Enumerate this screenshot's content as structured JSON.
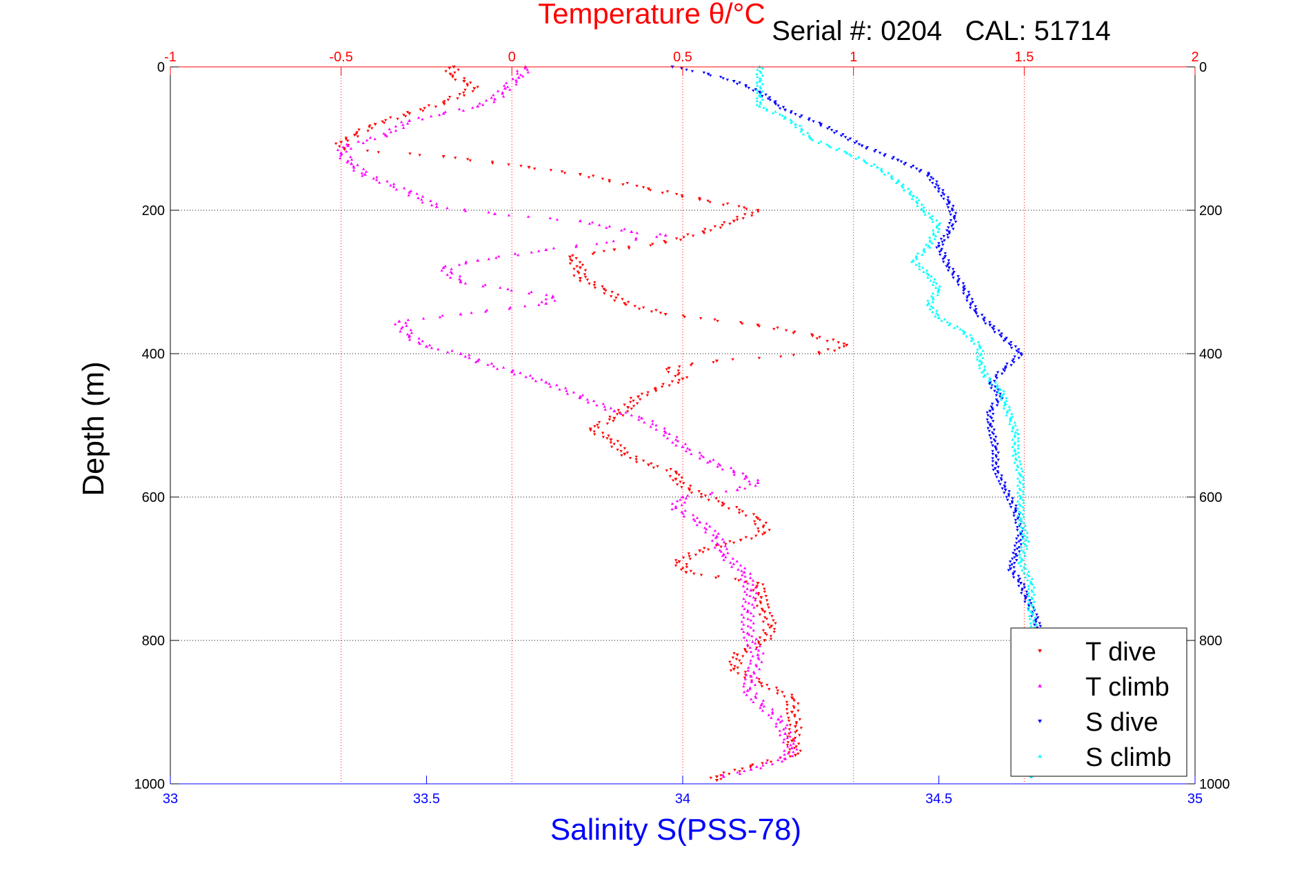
{
  "chart_data": {
    "type": "scatter",
    "title": "Temperature θ/°C",
    "subtitle": "Serial #: 0204   CAL: 51714",
    "xlabel": "Salinity S(PSS-78)",
    "ylabel": "Depth (m)",
    "temperature_axis": {
      "range": [
        -1,
        2
      ],
      "ticks": [
        -1,
        -0.5,
        0,
        0.5,
        1,
        1.5,
        2
      ],
      "color": "#ff0000"
    },
    "salinity_axis": {
      "range": [
        33,
        35
      ],
      "ticks": [
        33,
        33.5,
        34,
        34.5,
        35
      ],
      "color": "#0000ff"
    },
    "depth_axis": {
      "range": [
        0,
        1000
      ],
      "reversed": true,
      "ticks": [
        0,
        200,
        400,
        600,
        800,
        1000
      ]
    },
    "grid": true,
    "legend_position": "bottom-right",
    "series": [
      {
        "name": "T dive",
        "axis": "temperature",
        "color": "#ff0000",
        "marker": "triangle-down",
        "points": [
          [
            -0.17,
            0
          ],
          [
            -0.18,
            10
          ],
          [
            -0.14,
            20
          ],
          [
            -0.11,
            30
          ],
          [
            -0.2,
            50
          ],
          [
            -0.3,
            65
          ],
          [
            -0.4,
            80
          ],
          [
            -0.46,
            95
          ],
          [
            -0.5,
            105
          ],
          [
            -0.49,
            115
          ],
          [
            -0.2,
            125
          ],
          [
            0.05,
            140
          ],
          [
            0.2,
            150
          ],
          [
            0.4,
            170
          ],
          [
            0.55,
            185
          ],
          [
            0.72,
            200
          ],
          [
            0.65,
            215
          ],
          [
            0.56,
            230
          ],
          [
            0.45,
            245
          ],
          [
            0.3,
            255
          ],
          [
            0.17,
            265
          ],
          [
            0.2,
            280
          ],
          [
            0.2,
            295
          ],
          [
            0.27,
            310
          ],
          [
            0.33,
            330
          ],
          [
            0.45,
            345
          ],
          [
            0.72,
            360
          ],
          [
            0.88,
            375
          ],
          [
            0.98,
            388
          ],
          [
            0.9,
            400
          ],
          [
            0.6,
            410
          ],
          [
            0.46,
            420
          ],
          [
            0.5,
            435
          ],
          [
            0.42,
            450
          ],
          [
            0.37,
            460
          ],
          [
            0.34,
            475
          ],
          [
            0.3,
            490
          ],
          [
            0.23,
            505
          ],
          [
            0.29,
            520
          ],
          [
            0.33,
            540
          ],
          [
            0.4,
            555
          ],
          [
            0.48,
            565
          ],
          [
            0.48,
            575
          ],
          [
            0.52,
            590
          ],
          [
            0.62,
            610
          ],
          [
            0.72,
            630
          ],
          [
            0.74,
            650
          ],
          [
            0.67,
            660
          ],
          [
            0.55,
            675
          ],
          [
            0.49,
            690
          ],
          [
            0.51,
            705
          ],
          [
            0.72,
            720
          ],
          [
            0.73,
            740
          ],
          [
            0.74,
            760
          ],
          [
            0.76,
            780
          ],
          [
            0.74,
            800
          ],
          [
            0.66,
            820
          ],
          [
            0.65,
            840
          ],
          [
            0.73,
            860
          ],
          [
            0.82,
            880
          ],
          [
            0.82,
            900
          ],
          [
            0.83,
            920
          ],
          [
            0.82,
            940
          ],
          [
            0.83,
            960
          ],
          [
            0.7,
            975
          ],
          [
            0.6,
            990
          ],
          [
            0.6,
            995
          ]
        ]
      },
      {
        "name": "T climb",
        "axis": "temperature",
        "color": "#ff00ff",
        "marker": "triangle-up",
        "points": [
          [
            0.04,
            0
          ],
          [
            0.02,
            15
          ],
          [
            -0.02,
            30
          ],
          [
            -0.05,
            45
          ],
          [
            -0.1,
            55
          ],
          [
            -0.2,
            65
          ],
          [
            -0.3,
            75
          ],
          [
            -0.37,
            95
          ],
          [
            -0.48,
            110
          ],
          [
            -0.5,
            120
          ],
          [
            -0.47,
            135
          ],
          [
            -0.43,
            150
          ],
          [
            -0.3,
            175
          ],
          [
            -0.22,
            195
          ],
          [
            -0.05,
            205
          ],
          [
            0.2,
            215
          ],
          [
            0.35,
            230
          ],
          [
            0.45,
            235
          ],
          [
            0.1,
            255
          ],
          [
            -0.1,
            270
          ],
          [
            -0.2,
            280
          ],
          [
            -0.15,
            300
          ],
          [
            0.12,
            320
          ],
          [
            0.1,
            330
          ],
          [
            -0.15,
            345
          ],
          [
            -0.33,
            355
          ],
          [
            -0.3,
            375
          ],
          [
            -0.25,
            390
          ],
          [
            -0.15,
            400
          ],
          [
            -0.1,
            410
          ],
          [
            0.0,
            425
          ],
          [
            0.1,
            440
          ],
          [
            0.2,
            460
          ],
          [
            0.3,
            480
          ],
          [
            0.38,
            490
          ],
          [
            0.45,
            510
          ],
          [
            0.5,
            530
          ],
          [
            0.58,
            550
          ],
          [
            0.65,
            565
          ],
          [
            0.72,
            580
          ],
          [
            0.66,
            590
          ],
          [
            0.5,
            600
          ],
          [
            0.48,
            615
          ],
          [
            0.55,
            635
          ],
          [
            0.6,
            655
          ],
          [
            0.62,
            680
          ],
          [
            0.68,
            705
          ],
          [
            0.7,
            730
          ],
          [
            0.69,
            760
          ],
          [
            0.69,
            790
          ],
          [
            0.72,
            820
          ],
          [
            0.7,
            850
          ],
          [
            0.69,
            870
          ],
          [
            0.73,
            890
          ],
          [
            0.78,
            910
          ],
          [
            0.8,
            930
          ],
          [
            0.82,
            950
          ],
          [
            0.8,
            965
          ],
          [
            0.7,
            980
          ],
          [
            0.62,
            990
          ]
        ]
      },
      {
        "name": "S dive",
        "axis": "salinity",
        "color": "#0000ff",
        "marker": "triangle-down",
        "points": [
          [
            33.98,
            0
          ],
          [
            34.05,
            10
          ],
          [
            34.1,
            20
          ],
          [
            34.15,
            35
          ],
          [
            34.18,
            50
          ],
          [
            34.2,
            60
          ],
          [
            34.27,
            80
          ],
          [
            34.35,
            110
          ],
          [
            34.42,
            130
          ],
          [
            34.48,
            150
          ],
          [
            34.5,
            170
          ],
          [
            34.52,
            190
          ],
          [
            34.53,
            210
          ],
          [
            34.52,
            230
          ],
          [
            34.5,
            250
          ],
          [
            34.52,
            280
          ],
          [
            34.55,
            310
          ],
          [
            34.57,
            340
          ],
          [
            34.6,
            360
          ],
          [
            34.63,
            380
          ],
          [
            34.66,
            400
          ],
          [
            34.63,
            420
          ],
          [
            34.6,
            440
          ],
          [
            34.62,
            460
          ],
          [
            34.6,
            480
          ],
          [
            34.6,
            500
          ],
          [
            34.61,
            530
          ],
          [
            34.61,
            560
          ],
          [
            34.63,
            590
          ],
          [
            34.65,
            620
          ],
          [
            34.66,
            650
          ],
          [
            34.65,
            680
          ],
          [
            34.64,
            700
          ],
          [
            34.66,
            720
          ],
          [
            34.67,
            740
          ],
          [
            34.69,
            770
          ],
          [
            34.7,
            800
          ],
          [
            34.7,
            830
          ],
          [
            34.69,
            860
          ],
          [
            34.69,
            900
          ],
          [
            34.68,
            940
          ],
          [
            34.68,
            970
          ],
          [
            34.68,
            990
          ]
        ]
      },
      {
        "name": "S climb",
        "axis": "salinity",
        "color": "#00ffff",
        "marker": "triangle-up",
        "points": [
          [
            34.15,
            0
          ],
          [
            34.15,
            20
          ],
          [
            34.15,
            40
          ],
          [
            34.15,
            55
          ],
          [
            34.2,
            70
          ],
          [
            34.22,
            80
          ],
          [
            34.25,
            100
          ],
          [
            34.32,
            120
          ],
          [
            34.38,
            140
          ],
          [
            34.42,
            160
          ],
          [
            34.45,
            180
          ],
          [
            34.47,
            200
          ],
          [
            34.5,
            220
          ],
          [
            34.48,
            250
          ],
          [
            34.45,
            270
          ],
          [
            34.48,
            290
          ],
          [
            34.5,
            310
          ],
          [
            34.48,
            330
          ],
          [
            34.5,
            350
          ],
          [
            34.55,
            370
          ],
          [
            34.58,
            390
          ],
          [
            34.58,
            410
          ],
          [
            34.59,
            430
          ],
          [
            34.62,
            450
          ],
          [
            34.63,
            470
          ],
          [
            34.64,
            490
          ],
          [
            34.65,
            510
          ],
          [
            34.65,
            540
          ],
          [
            34.66,
            570
          ],
          [
            34.66,
            600
          ],
          [
            34.66,
            630
          ],
          [
            34.67,
            660
          ],
          [
            34.66,
            690
          ],
          [
            34.68,
            720
          ],
          [
            34.68,
            760
          ],
          [
            34.69,
            800
          ],
          [
            34.69,
            840
          ],
          [
            34.68,
            880
          ],
          [
            34.68,
            920
          ],
          [
            34.68,
            960
          ],
          [
            34.68,
            990
          ]
        ]
      }
    ]
  }
}
